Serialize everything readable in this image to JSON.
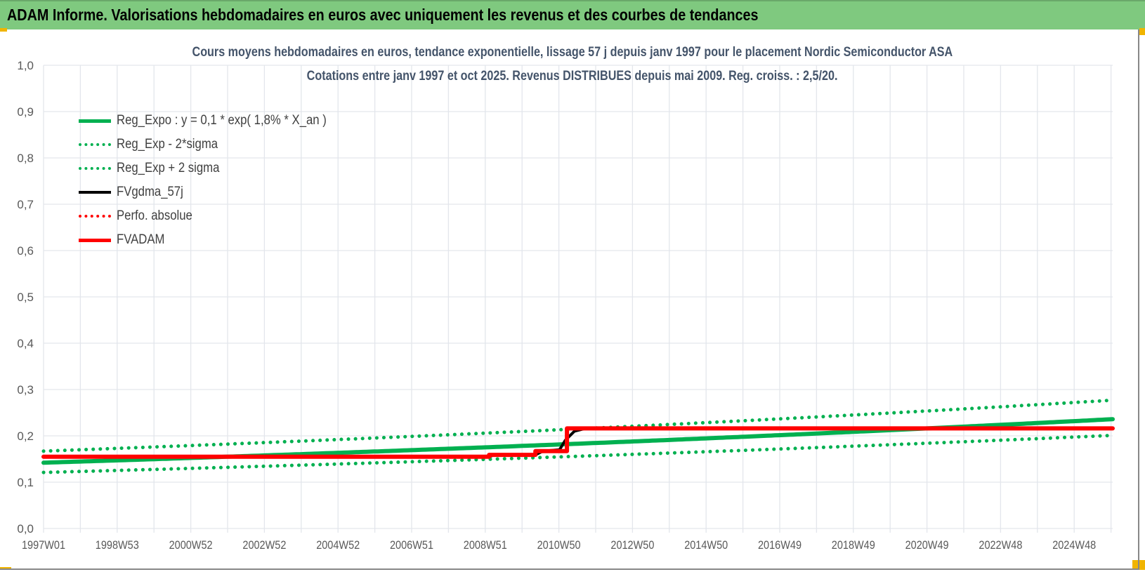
{
  "header": {
    "title": "ADAM Informe. Valorisations hebdomadaires en euros avec uniquement les revenus et des courbes de tendances"
  },
  "chart_data": {
    "type": "line",
    "title": "Cours moyens hebdomadaires en euros, tendance exponentielle, lissage 57 j depuis janv 1997 pour le placement Nordic Semiconductor ASA",
    "subtitle": "Cotations entre janv 1997 et oct 2025. Revenus DISTRIBUES depuis mai 2009. Reg. croiss. : 2,5/20.",
    "xlabel": "",
    "ylabel": "",
    "x_unit": "year",
    "xlim": [
      1997.0,
      2025.8
    ],
    "ylim": [
      0,
      1.0
    ],
    "y_ticks": [
      "0,0",
      "0,1",
      "0,2",
      "0,3",
      "0,4",
      "0,5",
      "0,6",
      "0,7",
      "0,8",
      "0,9",
      "1,0"
    ],
    "x_ticks": [
      "1997W01",
      "1998W53",
      "2000W52",
      "2002W52",
      "2004W52",
      "2006W51",
      "2008W51",
      "2010W50",
      "2012W50",
      "2014W50",
      "2016W49",
      "2018W49",
      "2020W49",
      "2022W48",
      "2024W48"
    ],
    "grid": true,
    "legend_position": "top-left",
    "series": [
      {
        "name": "Reg_Expo : y = 0,1 * exp( 1,8% *  X_an )",
        "color": "#00b050",
        "style": "solid",
        "points": [
          [
            1997.0,
            0.142
          ],
          [
            2025.8,
            0.236
          ]
        ]
      },
      {
        "name": "Reg_Exp - 2*sigma",
        "color": "#00b050",
        "style": "dotted",
        "points": [
          [
            1997.0,
            0.121
          ],
          [
            2025.8,
            0.201
          ]
        ]
      },
      {
        "name": "Reg_Exp + 2 sigma",
        "color": "#00b050",
        "style": "dotted",
        "points": [
          [
            1997.0,
            0.167
          ],
          [
            2025.8,
            0.277
          ]
        ]
      },
      {
        "name": "FVgdma_57j",
        "color": "#000000",
        "style": "solid",
        "points": [
          [
            1997.0,
            0.155
          ],
          [
            2009.0,
            0.155
          ],
          [
            2009.15,
            0.159
          ],
          [
            2010.25,
            0.159
          ],
          [
            2010.45,
            0.167
          ],
          [
            2010.9,
            0.17
          ],
          [
            2011.05,
            0.19
          ],
          [
            2011.3,
            0.21
          ],
          [
            2011.6,
            0.216
          ],
          [
            2025.8,
            0.216
          ]
        ]
      },
      {
        "name": "Perfo. absolue",
        "color": "#ff0000",
        "style": "dotted",
        "points": [
          [
            1997.0,
            0.155
          ],
          [
            2009.0,
            0.155
          ],
          [
            2009.0,
            0.159
          ],
          [
            2010.25,
            0.159
          ],
          [
            2010.25,
            0.167
          ],
          [
            2011.1,
            0.167
          ],
          [
            2011.1,
            0.216
          ],
          [
            2025.8,
            0.216
          ]
        ]
      },
      {
        "name": "FVADAM",
        "color": "#ff0000",
        "style": "solid",
        "points": [
          [
            1997.0,
            0.155
          ],
          [
            2009.0,
            0.155
          ],
          [
            2009.0,
            0.159
          ],
          [
            2010.25,
            0.159
          ],
          [
            2010.25,
            0.167
          ],
          [
            2011.1,
            0.167
          ],
          [
            2011.1,
            0.216
          ],
          [
            2025.8,
            0.216
          ]
        ]
      }
    ]
  }
}
